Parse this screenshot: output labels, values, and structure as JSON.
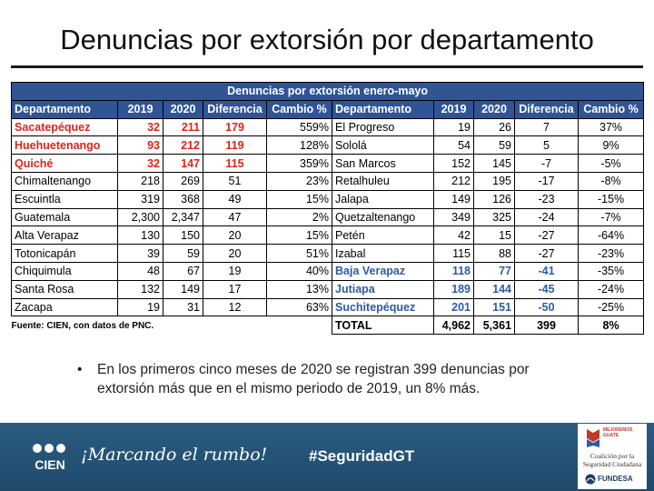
{
  "title": "Denuncias por extorsión por departamento",
  "table": {
    "banner": "Denuncias por extorsión enero-mayo",
    "headers": [
      "Departamento",
      "2019",
      "2020",
      "Diferencia",
      "Cambio %"
    ],
    "left_rows": [
      {
        "dep": "Sacatepéquez",
        "y2019": "32",
        "y2020": "211",
        "diff": "179",
        "pct": "559%"
      },
      {
        "dep": "Huehuetenango",
        "y2019": "93",
        "y2020": "212",
        "diff": "119",
        "pct": "128%"
      },
      {
        "dep": "Quiché",
        "y2019": "32",
        "y2020": "147",
        "diff": "115",
        "pct": "359%"
      },
      {
        "dep": "Chimaltenango",
        "y2019": "218",
        "y2020": "269",
        "diff": "51",
        "pct": "23%"
      },
      {
        "dep": "Escuintla",
        "y2019": "319",
        "y2020": "368",
        "diff": "49",
        "pct": "15%"
      },
      {
        "dep": "Guatemala",
        "y2019": "2,300",
        "y2020": "2,347",
        "diff": "47",
        "pct": "2%"
      },
      {
        "dep": "Alta Verapaz",
        "y2019": "130",
        "y2020": "150",
        "diff": "20",
        "pct": "15%"
      },
      {
        "dep": "Totonicapán",
        "y2019": "39",
        "y2020": "59",
        "diff": "20",
        "pct": "51%"
      },
      {
        "dep": "Chiquimula",
        "y2019": "48",
        "y2020": "67",
        "diff": "19",
        "pct": "40%"
      },
      {
        "dep": "Santa Rosa",
        "y2019": "132",
        "y2020": "149",
        "diff": "17",
        "pct": "13%"
      },
      {
        "dep": "Zacapa",
        "y2019": "19",
        "y2020": "31",
        "diff": "12",
        "pct": "63%"
      }
    ],
    "right_rows": [
      {
        "dep": "El Progreso",
        "y2019": "19",
        "y2020": "26",
        "diff": "7",
        "pct": "37%"
      },
      {
        "dep": "Sololá",
        "y2019": "54",
        "y2020": "59",
        "diff": "5",
        "pct": "9%"
      },
      {
        "dep": "San Marcos",
        "y2019": "152",
        "y2020": "145",
        "diff": "-7",
        "pct": "-5%"
      },
      {
        "dep": "Retalhuleu",
        "y2019": "212",
        "y2020": "195",
        "diff": "-17",
        "pct": "-8%"
      },
      {
        "dep": "Jalapa",
        "y2019": "149",
        "y2020": "126",
        "diff": "-23",
        "pct": "-15%"
      },
      {
        "dep": "Quetzaltenango",
        "y2019": "349",
        "y2020": "325",
        "diff": "-24",
        "pct": "-7%"
      },
      {
        "dep": "Petén",
        "y2019": "42",
        "y2020": "15",
        "diff": "-27",
        "pct": "-64%"
      },
      {
        "dep": "Izabal",
        "y2019": "115",
        "y2020": "88",
        "diff": "-27",
        "pct": "-23%"
      },
      {
        "dep": "Baja Verapaz",
        "y2019": "118",
        "y2020": "77",
        "diff": "-41",
        "pct": "-35%"
      },
      {
        "dep": "Jutiapa",
        "y2019": "189",
        "y2020": "144",
        "diff": "-45",
        "pct": "-24%"
      },
      {
        "dep": "Suchitepéquez",
        "y2019": "201",
        "y2020": "151",
        "diff": "-50",
        "pct": "-25%"
      }
    ],
    "total": {
      "dep": "TOTAL",
      "y2019": "4,962",
      "y2020": "5,361",
      "diff": "399",
      "pct": "8%"
    },
    "source_note": "Fuente: CIEN, con datos de PNC."
  },
  "bullet_text": "En los primeros cinco meses de 2020 se registran 399 denuncias por extorsión más que en el mismo periodo de 2019, un 8% más.",
  "footer": {
    "logo_text": "CIEN",
    "slogan": "¡Marcando el rumbo!",
    "hashtag": "#SeguridadGT",
    "partner_mejoremos": "MEJOREMOS GUATE",
    "partner_name": "Coalición por la Seguridad Ciudadana",
    "partner_fundesa": "FUNDESA"
  },
  "colors": {
    "header_blue": "#2f5597",
    "highlight_red": "#e2231a",
    "highlight_blue": "#2e5aa8",
    "footer_bg": "#1f4a6c"
  }
}
